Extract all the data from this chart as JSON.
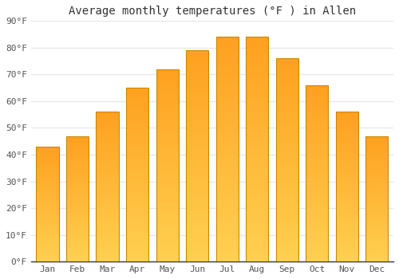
{
  "title": "Average monthly temperatures (°F ) in Allen",
  "months": [
    "Jan",
    "Feb",
    "Mar",
    "Apr",
    "May",
    "Jun",
    "Jul",
    "Aug",
    "Sep",
    "Oct",
    "Nov",
    "Dec"
  ],
  "values": [
    43,
    47,
    56,
    65,
    72,
    79,
    84,
    84,
    76,
    66,
    56,
    47
  ],
  "bar_color_bottom": "#FFD050",
  "bar_color_top": "#FFA020",
  "bar_edge_color": "#CC8800",
  "ylim": [
    0,
    90
  ],
  "yticks": [
    0,
    10,
    20,
    30,
    40,
    50,
    60,
    70,
    80,
    90
  ],
  "ytick_labels": [
    "0°F",
    "10°F",
    "20°F",
    "30°F",
    "40°F",
    "50°F",
    "60°F",
    "70°F",
    "80°F",
    "90°F"
  ],
  "background_color": "#ffffff",
  "grid_color": "#e8e8e8",
  "title_fontsize": 10,
  "tick_fontsize": 8,
  "font_family": "monospace",
  "tick_color": "#555555",
  "title_color": "#333333"
}
